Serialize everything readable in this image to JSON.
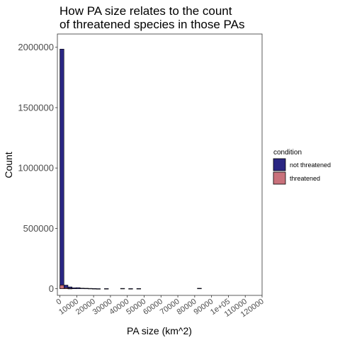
{
  "chart_data": {
    "type": "bar",
    "title_lines": [
      "How PA size relates to the count",
      "of threatened species in those PAs"
    ],
    "xlabel": "PA size (km^2)",
    "ylabel": "Count",
    "xlim": [
      -1500,
      120000
    ],
    "ylim": [
      -55000,
      2110000
    ],
    "x_tick_labels": [
      "0",
      "10000",
      "20000",
      "30000",
      "40000",
      "50000",
      "60000",
      "70000",
      "80000",
      "90000",
      "1e+05",
      "110000",
      "120000"
    ],
    "x_tick_values": [
      0,
      10000,
      20000,
      30000,
      40000,
      50000,
      60000,
      70000,
      80000,
      90000,
      100000,
      110000,
      120000
    ],
    "y_tick_labels": [
      "0",
      "500000",
      "1000000",
      "1500000",
      "2000000"
    ],
    "y_tick_values": [
      0,
      500000,
      1000000,
      1500000,
      2000000
    ],
    "grid": false,
    "legend_position": "right",
    "legend": {
      "title": "condition",
      "items": [
        {
          "label": "not threatened",
          "color": "#2a2683"
        },
        {
          "label": "threatened",
          "color": "#c9717b"
        }
      ]
    },
    "bin_width": 2400,
    "series": [
      {
        "name": "not threatened",
        "color": "#2a2683",
        "bins": [
          {
            "x": 0,
            "count": 1985000
          },
          {
            "x": 2400,
            "count": 30000
          },
          {
            "x": 4800,
            "count": 15000
          },
          {
            "x": 7200,
            "count": 8000
          },
          {
            "x": 9600,
            "count": 9000
          },
          {
            "x": 12000,
            "count": 5000
          },
          {
            "x": 14400,
            "count": 4000
          },
          {
            "x": 16800,
            "count": 3000
          },
          {
            "x": 19200,
            "count": 2000
          },
          {
            "x": 21600,
            "count": 1000
          },
          {
            "x": 26400,
            "count": 1500
          },
          {
            "x": 36000,
            "count": 3000
          },
          {
            "x": 40800,
            "count": 1500
          },
          {
            "x": 45600,
            "count": 2000
          },
          {
            "x": 81600,
            "count": 4000
          }
        ]
      },
      {
        "name": "threatened",
        "color": "#c9717b",
        "bins": [
          {
            "x": 0,
            "count": 30000
          },
          {
            "x": 2400,
            "count": 8000
          },
          {
            "x": 4800,
            "count": 3000
          }
        ]
      }
    ]
  }
}
